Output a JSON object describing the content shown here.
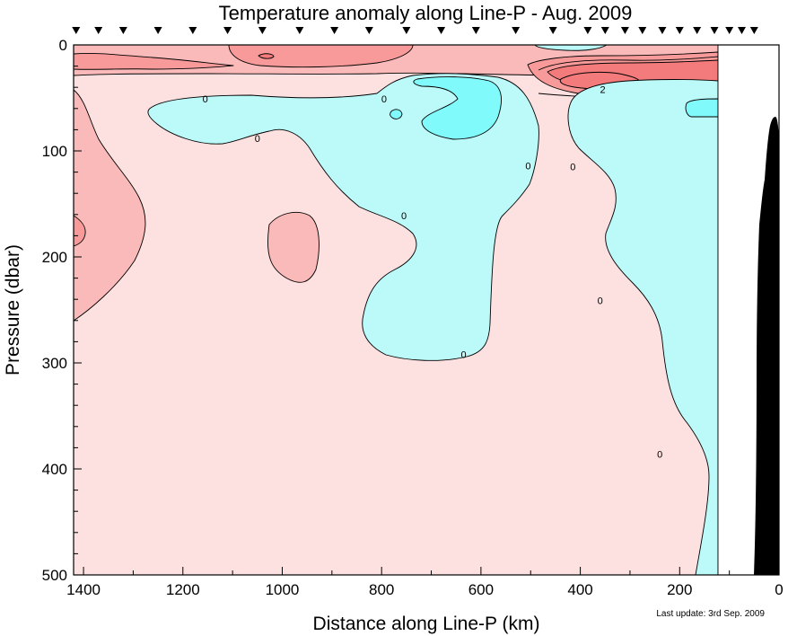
{
  "chart_data": {
    "type": "contour",
    "title": "Temperature anomaly along Line-P - Aug. 2009",
    "xlabel": "Distance along Line-P (km)",
    "ylabel": "Pressure (dbar)",
    "xlim": [
      1420,
      0
    ],
    "ylim": [
      0,
      500
    ],
    "x_ticks": [
      "1400",
      "1200",
      "1000",
      "800",
      "600",
      "400",
      "200",
      "0"
    ],
    "x_tick_values": [
      1400,
      1200,
      1000,
      800,
      600,
      400,
      200,
      0
    ],
    "x_minor_step": 100,
    "y_ticks": [
      "0",
      "100",
      "200",
      "300",
      "400",
      "500"
    ],
    "y_tick_values": [
      0,
      100,
      200,
      300,
      400,
      500
    ],
    "y_minor_step": 20,
    "station_distances_km": [
      1415,
      1370,
      1320,
      1250,
      1180,
      1110,
      1040,
      965,
      895,
      825,
      750,
      680,
      610,
      530,
      455,
      385,
      350,
      310,
      275,
      235,
      200,
      165,
      130,
      100,
      75,
      50
    ],
    "data_end_km": 125,
    "contour_labels": [
      {
        "text": "2",
        "x": 355,
        "y": 42
      },
      {
        "text": "0",
        "x": 1155,
        "y": 51
      },
      {
        "text": "0",
        "x": 795,
        "y": 51
      },
      {
        "text": "0",
        "x": 1050,
        "y": 88
      },
      {
        "text": "0",
        "x": 505,
        "y": 114
      },
      {
        "text": "0",
        "x": 415,
        "y": 115
      },
      {
        "text": "0",
        "x": 755,
        "y": 161
      },
      {
        "text": "0",
        "x": 635,
        "y": 292
      },
      {
        "text": "0",
        "x": 360,
        "y": 241
      },
      {
        "text": "0",
        "x": 240,
        "y": 386
      }
    ],
    "colors": {
      "background_anomaly": "#fde0e0",
      "warm_anomaly": "#fbbaba",
      "warm_strong": "#f99a9a",
      "warm_peak": "#f47b7b",
      "cool_anomaly": "#bcfafa",
      "cool_strong": "#80fafa",
      "bathymetry": "#000000"
    }
  },
  "footer": {
    "last_update": "Last update: 3rd Sep. 2009"
  }
}
